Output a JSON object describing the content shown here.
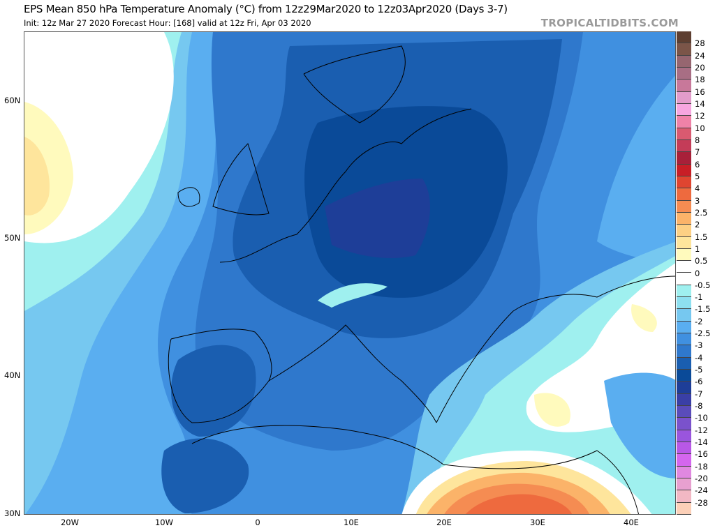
{
  "header": {
    "title": "EPS Mean 850 hPa Temperature Anomaly (°C) from 12z29Mar2020 to 12z03Apr2020 (Days 3-7)",
    "subtitle": "Init: 12z Mar 27 2020   Forecast Hour: [168]   valid at 12z Fri, Apr 03 2020",
    "brand": "TROPICALTIDBITS.COM"
  },
  "map": {
    "latitude_labels": [
      "60N",
      "50N",
      "40N",
      "30N"
    ],
    "longitude_labels": [
      "20W",
      "10W",
      "0",
      "10E",
      "20E",
      "30E",
      "40E"
    ]
  },
  "colorbar": {
    "labels": [
      "28",
      "24",
      "20",
      "18",
      "16",
      "14",
      "12",
      "10",
      "8",
      "7",
      "6",
      "5",
      "4",
      "3",
      "2.5",
      "2",
      "1.5",
      "1",
      "0.5",
      "0",
      "-0.5",
      "-1",
      "-1.5",
      "-2",
      "-2.5",
      "-3",
      "-4",
      "-5",
      "-6",
      "-7",
      "-8",
      "-10",
      "-12",
      "-14",
      "-16",
      "-18",
      "-20",
      "-24",
      "-28"
    ],
    "colors": [
      "#5e3f31",
      "#7b5548",
      "#966670",
      "#a86e84",
      "#c8789a",
      "#e39ccb",
      "#f7a6e0",
      "#ef82a8",
      "#d95a70",
      "#c43c58",
      "#a82039",
      "#c81e26",
      "#df4530",
      "#ee6a3e",
      "#f58c52",
      "#fbb369",
      "#fdd084",
      "#fee59c",
      "#fffabd",
      "#ffffff",
      "#ffffff",
      "#9ff0ef",
      "#8ee0f0",
      "#76c8f0",
      "#5aaef0",
      "#4090e0",
      "#2f78cc",
      "#1a5eb0",
      "#0a4a98",
      "#1e3e98",
      "#3a3fa6",
      "#5a4cba",
      "#7a52cc",
      "#9a55dd",
      "#b858e6",
      "#d466ee",
      "#e088e0",
      "#e8a0d0",
      "#f2b8c4",
      "#fcd0b8"
    ]
  }
}
